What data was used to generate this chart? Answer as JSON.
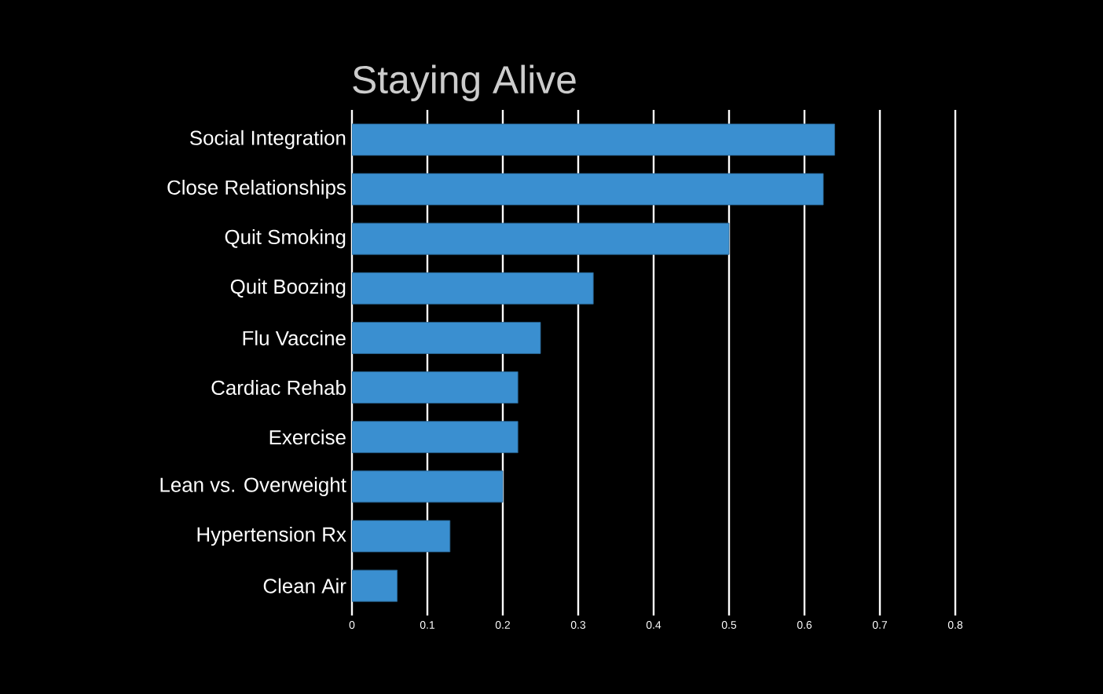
{
  "chart_data": {
    "type": "bar",
    "orientation": "horizontal",
    "title": "Staying Alive",
    "categories": [
      "Social Integration",
      "Close Relationships",
      "Quit Smoking",
      "Quit Boozing",
      "Flu Vaccine",
      "Cardiac Rehab",
      "Exercise",
      "Lean vs. Overweight",
      "Hypertension Rx",
      "Clean Air"
    ],
    "values": [
      0.64,
      0.625,
      0.5,
      0.32,
      0.25,
      0.22,
      0.22,
      0.2,
      0.13,
      0.06
    ],
    "color": "#3a8fd0",
    "xlim": [
      0,
      0.8
    ],
    "xticks": [
      0,
      0.1,
      0.2,
      0.3,
      0.4,
      0.5,
      0.6,
      0.7,
      0.8
    ],
    "grid": "x"
  }
}
